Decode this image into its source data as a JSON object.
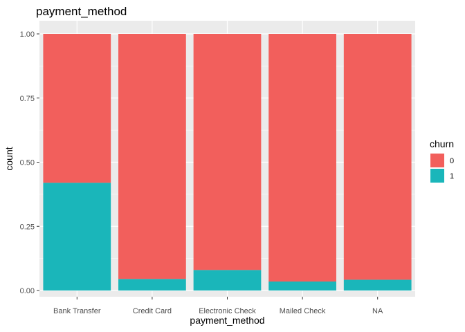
{
  "chart_data": {
    "type": "bar",
    "stacked": true,
    "title": "payment_method",
    "xlabel": "payment_method",
    "ylabel": "count",
    "ylim": [
      0,
      1.05
    ],
    "yticks": [
      0.0,
      0.25,
      0.5,
      0.75,
      1.0
    ],
    "ytick_labels": [
      "0.00",
      "0.25",
      "0.50",
      "0.75",
      "1.00"
    ],
    "categories": [
      "Bank Transfer",
      "Credit Card",
      "Electronic Check",
      "Mailed Check",
      "NA"
    ],
    "series": [
      {
        "name": "1",
        "color": "#1AB6BA",
        "values": [
          0.42,
          0.045,
          0.08,
          0.035,
          0.042
        ]
      },
      {
        "name": "0",
        "color": "#F25F5C",
        "values": [
          0.58,
          0.955,
          0.92,
          0.965,
          0.958
        ]
      }
    ],
    "legend": {
      "title": "churn",
      "placement": "right",
      "entries": [
        {
          "label": "0",
          "color": "#F25F5C"
        },
        {
          "label": "1",
          "color": "#1AB6BA"
        }
      ]
    },
    "grid": true,
    "panel_background": "#EBEBEB",
    "grid_color": "#FFFFFF"
  }
}
